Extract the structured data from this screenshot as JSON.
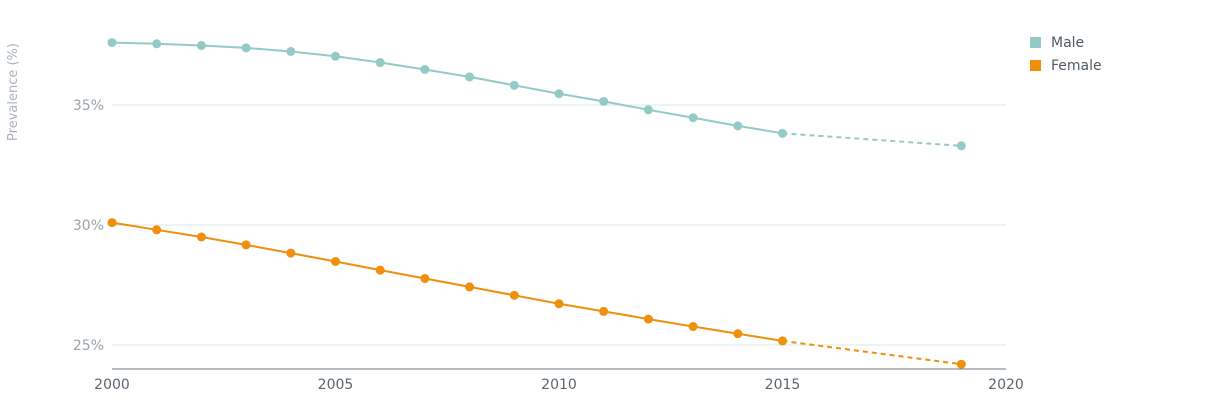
{
  "chart_data": {
    "type": "line",
    "ylabel": "Prevalence (%)",
    "xlabel": "",
    "xlim": [
      2000,
      2020
    ],
    "ylim": [
      24,
      38.5
    ],
    "x_ticks": [
      "2000",
      "2005",
      "2010",
      "2015",
      "2020"
    ],
    "y_ticks": [
      {
        "value": 25,
        "label": "25%"
      },
      {
        "value": 30,
        "label": "30%"
      },
      {
        "value": 35,
        "label": "35%"
      }
    ],
    "grid": true,
    "legend_position": "top-right",
    "series": [
      {
        "name": "Male",
        "color": "#93cac7",
        "points": [
          {
            "x": 2000,
            "y": 37.6
          },
          {
            "x": 2001,
            "y": 37.55
          },
          {
            "x": 2002,
            "y": 37.48
          },
          {
            "x": 2003,
            "y": 37.38
          },
          {
            "x": 2004,
            "y": 37.23
          },
          {
            "x": 2005,
            "y": 37.03
          },
          {
            "x": 2006,
            "y": 36.77
          },
          {
            "x": 2007,
            "y": 36.48
          },
          {
            "x": 2008,
            "y": 36.17
          },
          {
            "x": 2009,
            "y": 35.82
          },
          {
            "x": 2010,
            "y": 35.47
          },
          {
            "x": 2011,
            "y": 35.15
          },
          {
            "x": 2012,
            "y": 34.8
          },
          {
            "x": 2013,
            "y": 34.47
          },
          {
            "x": 2014,
            "y": 34.13
          },
          {
            "x": 2015,
            "y": 33.82
          }
        ],
        "projection": [
          {
            "x": 2015,
            "y": 33.82
          },
          {
            "x": 2019,
            "y": 33.3
          }
        ]
      },
      {
        "name": "Female",
        "color": "#ef8f0c",
        "points": [
          {
            "x": 2000,
            "y": 30.1
          },
          {
            "x": 2001,
            "y": 29.8
          },
          {
            "x": 2002,
            "y": 29.5
          },
          {
            "x": 2003,
            "y": 29.17
          },
          {
            "x": 2004,
            "y": 28.83
          },
          {
            "x": 2005,
            "y": 28.48
          },
          {
            "x": 2006,
            "y": 28.12
          },
          {
            "x": 2007,
            "y": 27.77
          },
          {
            "x": 2008,
            "y": 27.42
          },
          {
            "x": 2009,
            "y": 27.07
          },
          {
            "x": 2010,
            "y": 26.72
          },
          {
            "x": 2011,
            "y": 26.4
          },
          {
            "x": 2012,
            "y": 26.08
          },
          {
            "x": 2013,
            "y": 25.77
          },
          {
            "x": 2014,
            "y": 25.47
          },
          {
            "x": 2015,
            "y": 25.17
          }
        ],
        "projection": [
          {
            "x": 2015,
            "y": 25.17
          },
          {
            "x": 2019,
            "y": 24.2
          }
        ]
      }
    ]
  }
}
